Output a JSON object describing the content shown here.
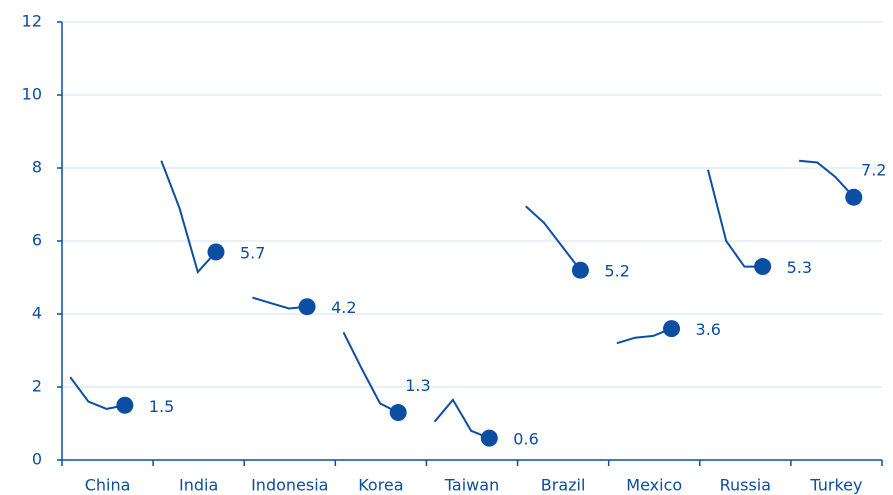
{
  "chart_data": {
    "type": "line",
    "categories": [
      "China",
      "India",
      "Indonesia",
      "Korea",
      "Taiwan",
      "Brazil",
      "Mexico",
      "Russia",
      "Turkey"
    ],
    "values": [
      [
        2.27,
        1.6,
        1.4,
        1.5
      ],
      [
        8.2,
        6.9,
        5.15,
        5.7
      ],
      [
        4.45,
        4.3,
        4.15,
        4.2
      ],
      [
        3.5,
        2.5,
        1.55,
        1.3
      ],
      [
        1.05,
        1.65,
        0.8,
        0.6
      ],
      [
        6.95,
        6.5,
        5.85,
        5.2
      ],
      [
        3.2,
        3.35,
        3.4,
        3.6
      ],
      [
        7.95,
        6.0,
        5.3,
        5.3
      ],
      [
        8.2,
        8.15,
        7.75,
        7.2
      ]
    ],
    "color": "#0b4ea2",
    "ylim": [
      0,
      12
    ],
    "yticks": [
      0,
      2,
      4,
      6,
      8,
      10,
      12
    ],
    "grid": true
  }
}
